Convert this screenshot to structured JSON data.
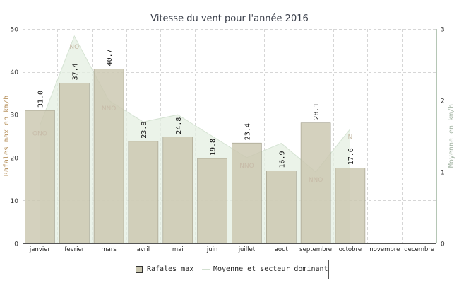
{
  "chart_data": {
    "type": "bar",
    "title": "Vitesse du vent pour l'année 2016",
    "ylabel": "Rafales max en km/h",
    "y2label": "Moyenne en km/h",
    "ylim": [
      0,
      50
    ],
    "y2lim": [
      0,
      3
    ],
    "yticks": [
      "0",
      "10",
      "20",
      "30",
      "40",
      "50"
    ],
    "y2ticks": [
      "0",
      "1",
      "2",
      "3"
    ],
    "grid": true,
    "legend_position": "bottom",
    "categories": [
      "janvier",
      "fevrier",
      "mars",
      "avril",
      "mai",
      "juin",
      "juillet",
      "aout",
      "septembre",
      "octobre",
      "novembre",
      "decembre"
    ],
    "series": [
      {
        "name": "Rafales max",
        "type": "bar",
        "axis": "left",
        "color": "#cbc7b0",
        "values": [
          31.0,
          37.4,
          40.7,
          23.8,
          24.8,
          19.8,
          23.4,
          16.9,
          28.1,
          17.6,
          null,
          null
        ],
        "labels": [
          "31.0",
          "37.4",
          "40.7",
          "23.8",
          "24.8",
          "19.8",
          "23.4",
          "16.9",
          "28.1",
          "17.6",
          null,
          null
        ]
      },
      {
        "name": "Moyenne et secteur dominant",
        "type": "area",
        "axis": "right",
        "color": "#e4efe2",
        "values": [
          1.65,
          2.9,
          2.0,
          1.7,
          1.8,
          1.5,
          1.2,
          1.4,
          1.0,
          1.6,
          null,
          null
        ],
        "sectors": [
          "ONO",
          "NO",
          "NNO",
          "",
          "",
          "",
          "NNO",
          "",
          "NNO",
          "N",
          "",
          ""
        ]
      }
    ]
  }
}
